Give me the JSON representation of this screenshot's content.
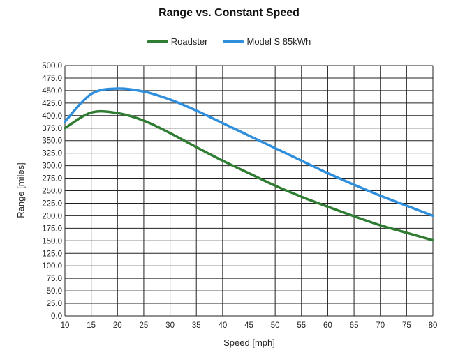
{
  "chart_data": {
    "type": "line",
    "title": "Range vs. Constant Speed",
    "xlabel": "Speed [mph]",
    "ylabel": "Range [miles]",
    "xlim": [
      10,
      80
    ],
    "ylim": [
      0,
      500
    ],
    "x_ticks": [
      10,
      15,
      20,
      25,
      30,
      35,
      40,
      45,
      50,
      55,
      60,
      65,
      70,
      75,
      80
    ],
    "y_ticks": [
      "0.0",
      "25.0",
      "50.0",
      "75.0",
      "100.0",
      "125.0",
      "150.0",
      "175.0",
      "200.0",
      "225.0",
      "250.0",
      "275.0",
      "300.0",
      "325.0",
      "350.0",
      "375.0",
      "400.0",
      "425.0",
      "450.0",
      "475.0",
      "500.0"
    ],
    "grid": true,
    "legend_position": "top",
    "x": [
      10,
      15,
      20,
      25,
      30,
      35,
      40,
      45,
      50,
      55,
      60,
      65,
      70,
      75,
      80
    ],
    "series": [
      {
        "name": "Roadster",
        "color": "#2e7d32",
        "values": [
          375,
          406,
          405,
          390,
          365,
          337,
          310,
          285,
          260,
          238,
          218,
          199,
          181,
          166,
          151
        ]
      },
      {
        "name": "Model S 85kWh",
        "color": "#2f8fdc",
        "values": [
          388,
          443,
          454,
          448,
          432,
          410,
          385,
          360,
          335,
          310,
          285,
          262,
          240,
          220,
          200
        ]
      }
    ]
  }
}
